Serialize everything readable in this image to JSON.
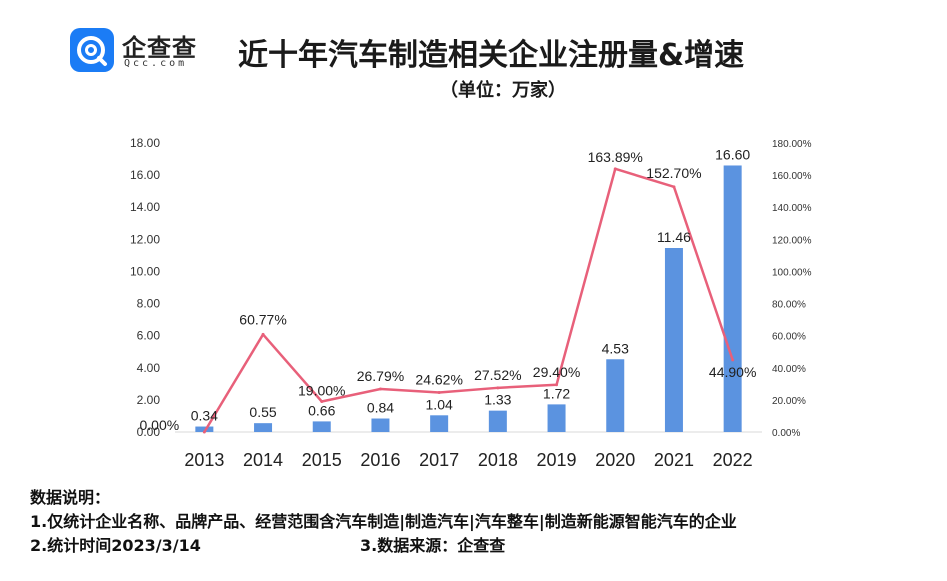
{
  "header": {
    "brand_name": "企查查",
    "brand_domain": "Qcc.com",
    "title": "近十年汽车制造相关企业注册量&增速",
    "subtitle": "（单位：万家）"
  },
  "colors": {
    "bar": "#5b93e0",
    "line": "#e8607a",
    "brand": "#1b7cf5"
  },
  "chart_data": {
    "type": "bar",
    "categories": [
      "2013",
      "2014",
      "2015",
      "2016",
      "2017",
      "2018",
      "2019",
      "2020",
      "2021",
      "2022"
    ],
    "series": [
      {
        "values": [
          0.34,
          0.55,
          0.66,
          0.84,
          1.04,
          1.33,
          1.72,
          4.53,
          11.46,
          16.6
        ],
        "labels": [
          "0.34",
          "0.55",
          "0.66",
          "0.84",
          "1.04",
          "1.33",
          "1.72",
          "4.53",
          "11.46",
          "16.60"
        ],
        "axis": "left",
        "kind": "bar"
      },
      {
        "values": [
          0.0,
          60.77,
          19.0,
          26.79,
          24.62,
          27.52,
          29.4,
          163.89,
          152.7,
          44.9
        ],
        "labels": [
          "0.00%",
          "60.77%",
          "19.00%",
          "26.79%",
          "24.62%",
          "27.52%",
          "29.40%",
          "163.89%",
          "152.70%",
          "44.90%"
        ],
        "axis": "right",
        "kind": "line"
      }
    ],
    "ylim": [
      0,
      18
    ],
    "y2lim": [
      0,
      180
    ],
    "left_ticks": [
      "0.00",
      "2.00",
      "4.00",
      "6.00",
      "8.00",
      "10.00",
      "12.00",
      "14.00",
      "16.00",
      "18.00"
    ],
    "right_ticks": [
      "0.00%",
      "20.00%",
      "40.00%",
      "60.00%",
      "80.00%",
      "100.00%",
      "120.00%",
      "140.00%",
      "160.00%",
      "180.00%"
    ],
    "grid": false,
    "legend": "none"
  },
  "notes": {
    "heading": "数据说明：",
    "line1": "1.仅统计企业名称、品牌产品、经营范围含汽车制造|制造汽车|汽车整车|制造新能源智能汽车的企业",
    "line2": "2.统计时间2023/3/14",
    "line3": "3.数据来源：企查查"
  }
}
